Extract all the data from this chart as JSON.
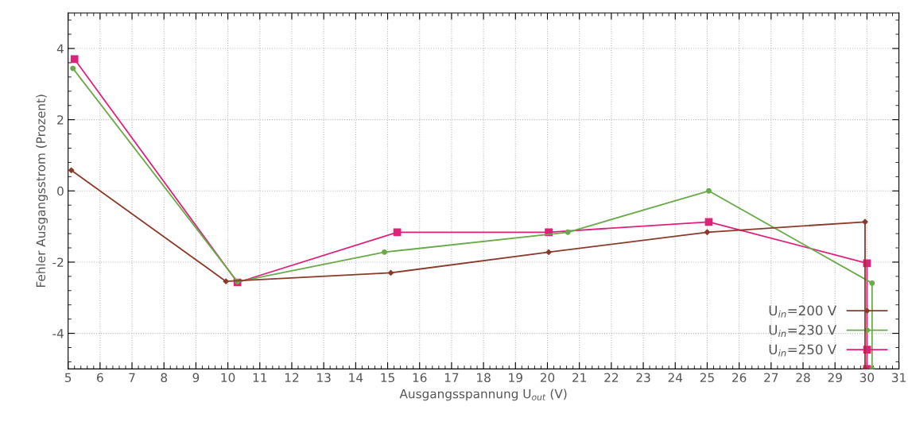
{
  "chart_data": {
    "type": "line",
    "xlabel": "Ausgangsspannung U$_{out}$ (V)",
    "ylabel": "Fehler Ausgangsstrom (Prozent)",
    "xlim": [
      5,
      31
    ],
    "xticks": [
      5,
      6,
      7,
      8,
      9,
      10,
      11,
      12,
      13,
      14,
      15,
      16,
      17,
      18,
      19,
      20,
      21,
      22,
      23,
      24,
      25,
      26,
      27,
      28,
      29,
      30,
      31
    ],
    "ylim": [
      -5,
      5
    ],
    "yticks": [
      {
        "value": -4,
        "label": "-4"
      },
      {
        "value": -2,
        "label": "-2"
      },
      0,
      2,
      4
    ],
    "grid": true,
    "legend": "bottom right",
    "line_style": "solid",
    "series": [
      {
        "name": "U$_{in}$=200 V",
        "color": "#8b3a2a",
        "marker": "diamond",
        "x": [
          5.1,
          9.94,
          15.1,
          20.04,
          25.0,
          29.94,
          29.94
        ],
        "values": [
          0.58,
          -2.54,
          -2.3,
          -1.72,
          -1.16,
          -0.87,
          -5
        ]
      },
      {
        "name": "U$_{in}$=230 V",
        "color": "#6aaa4a",
        "marker": "circle",
        "x": [
          5.15,
          10.3,
          14.9,
          20.64,
          25.05,
          30.16,
          30.16
        ],
        "values": [
          3.44,
          -2.55,
          -1.72,
          -1.16,
          0.0,
          -2.59,
          -5
        ]
      },
      {
        "name": "U$_{in}$=250 V",
        "color": "#e0207a",
        "marker": "square",
        "x": [
          5.2,
          10.3,
          15.3,
          20.04,
          25.05,
          30.0,
          30.0
        ],
        "values": [
          3.7,
          -2.57,
          -1.16,
          -1.16,
          -0.87,
          -2.03,
          -5
        ]
      }
    ]
  }
}
